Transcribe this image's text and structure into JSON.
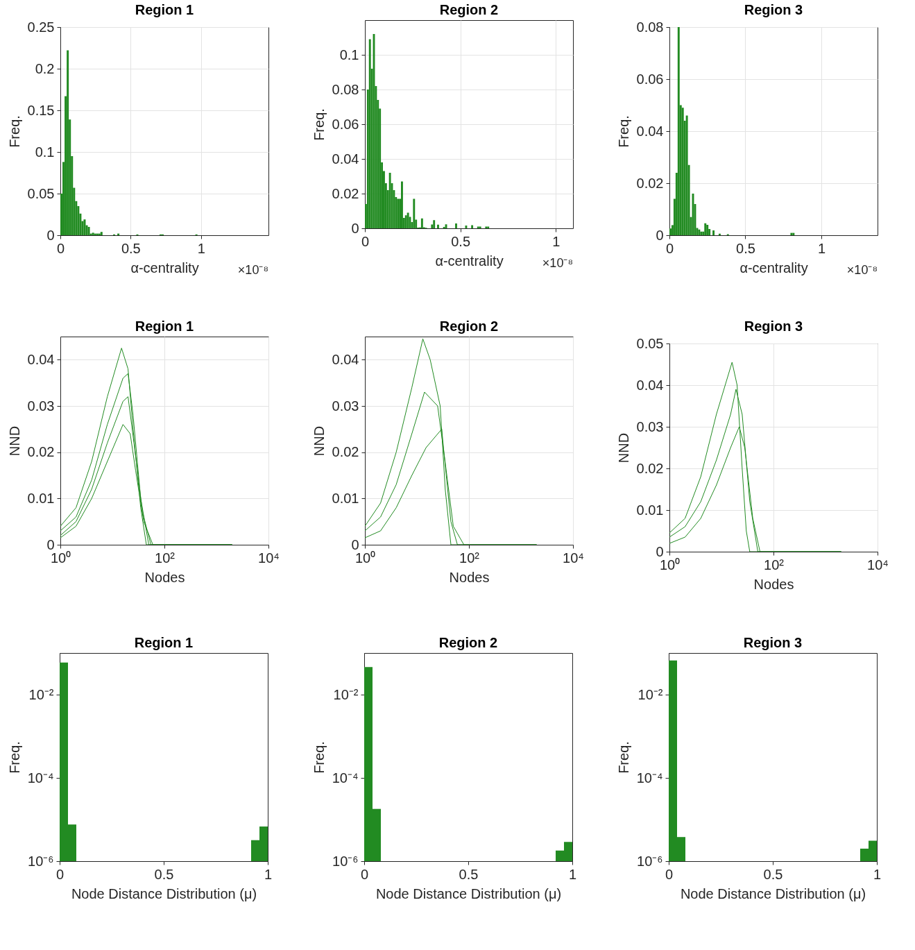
{
  "chart_data": [
    {
      "type": "histogram",
      "title": "Region 1",
      "xlabel": "α-centrality",
      "ylabel": "Freq.",
      "annotations": [
        "×10⁻⁸"
      ],
      "color": "#228b22",
      "grid": true,
      "xlim": [
        0,
        1.48
      ],
      "xticks": [
        0,
        0.5,
        1
      ],
      "ylim": [
        0,
        0.25
      ],
      "yticks": [
        0,
        0.05,
        0.1,
        0.15,
        0.2,
        0.25
      ],
      "bins": [
        0,
        0.015,
        0.03,
        0.045,
        0.06,
        0.075,
        0.09,
        0.105,
        0.12,
        0.135,
        0.15,
        0.165,
        0.18,
        0.195,
        0.21,
        0.225,
        0.24,
        0.255,
        0.27,
        0.285,
        0.3,
        0.375,
        0.39,
        0.405,
        0.42,
        0.54,
        0.555,
        0.705,
        0.72,
        0.735,
        0.96,
        0.975
      ],
      "values": [
        0.05,
        0.088,
        0.167,
        0.222,
        0.139,
        0.095,
        0.057,
        0.041,
        0.035,
        0.026,
        0.017,
        0.019,
        0.012,
        0.01,
        0.002,
        0.003,
        0.002,
        0.002,
        0.002,
        0.004,
        0,
        0.001,
        0,
        0.002,
        0,
        0.001,
        0,
        0.001,
        0.001,
        0,
        0.001
      ]
    },
    {
      "type": "histogram",
      "title": "Region 2",
      "xlabel": "α-centrality",
      "ylabel": "Freq.",
      "annotations": [
        "×10⁻⁸"
      ],
      "color": "#228b22",
      "grid": true,
      "xlim": [
        0,
        1.09
      ],
      "xticks": [
        0,
        0.5,
        1
      ],
      "ylim": [
        0,
        0.12
      ],
      "yticks": [
        0,
        0.02,
        0.04,
        0.06,
        0.08,
        0.1
      ],
      "bins": [
        0,
        0.0105,
        0.021,
        0.0315,
        0.042,
        0.0525,
        0.063,
        0.0735,
        0.084,
        0.0945,
        0.105,
        0.1155,
        0.126,
        0.1365,
        0.147,
        0.1575,
        0.168,
        0.1785,
        0.189,
        0.1995,
        0.21,
        0.2205,
        0.231,
        0.2415,
        0.252,
        0.2625,
        0.273,
        0.2835,
        0.294,
        0.3045,
        0.315,
        0.3255,
        0.3465,
        0.357,
        0.3675,
        0.378,
        0.3885,
        0.4095,
        0.42,
        0.4305,
        0.4725,
        0.483,
        0.525,
        0.5355,
        0.5565,
        0.567,
        0.588,
        0.5985,
        0.609,
        0.63,
        0.6405,
        0.651
      ],
      "values": [
        0.014,
        0.08,
        0.109,
        0.092,
        0.112,
        0.082,
        0.074,
        0.069,
        0.038,
        0.033,
        0.026,
        0.022,
        0.032,
        0.026,
        0.022,
        0.018,
        0.017,
        0.017,
        0.027,
        0.006,
        0.0075,
        0.009,
        0.0066,
        0.0036,
        0.017,
        0.005,
        0.0004,
        0.0005,
        0.0057,
        0.0006,
        0.0003,
        0,
        0.0022,
        0.0047,
        0,
        0.0021,
        0,
        0.0008,
        0.0023,
        0,
        0.0028,
        0,
        0.0016,
        0,
        0.0018,
        0,
        0.001,
        0.001,
        0,
        0.001,
        0.001
      ]
    },
    {
      "type": "histogram",
      "title": "Region 3",
      "xlabel": "α-centrality",
      "ylabel": "Freq.",
      "annotations": [
        "×10⁻⁸"
      ],
      "color": "#228b22",
      "grid": true,
      "xlim": [
        0,
        1.37
      ],
      "xticks": [
        0,
        0.5,
        1
      ],
      "ylim": [
        0,
        0.08
      ],
      "yticks": [
        0,
        0.02,
        0.04,
        0.06,
        0.08
      ],
      "bins": [
        0,
        0.0135,
        0.027,
        0.0405,
        0.054,
        0.0675,
        0.081,
        0.0945,
        0.108,
        0.1215,
        0.135,
        0.1485,
        0.162,
        0.1755,
        0.189,
        0.2025,
        0.216,
        0.2295,
        0.243,
        0.2565,
        0.27,
        0.2835,
        0.297,
        0.324,
        0.3375,
        0.378,
        0.3915,
        0.7965,
        0.81,
        0.8235
      ],
      "values": [
        0.0026,
        0.0039,
        0.014,
        0.024,
        0.08,
        0.05,
        0.049,
        0.044,
        0.046,
        0.027,
        0.007,
        0.016,
        0.012,
        0.0028,
        0.0022,
        0.0014,
        0.0014,
        0.0046,
        0.004,
        0.0024,
        0,
        0.0019,
        0,
        0.0006,
        0,
        0.0004,
        0,
        0.0009,
        0.0009
      ]
    },
    {
      "type": "line",
      "title": "Region 1",
      "xlabel": "Nodes",
      "ylabel": "NND",
      "log": "x",
      "grid": true,
      "xlim": [
        1,
        10000
      ],
      "xticks": [
        {
          "value": 1,
          "label": "10⁰"
        },
        {
          "value": 100,
          "label": "10²"
        },
        {
          "value": 10000,
          "label": "10⁴"
        }
      ],
      "ylim": [
        0,
        0.045
      ],
      "yticks": [
        0,
        0.01,
        0.02,
        0.03,
        0.04
      ],
      "series": [
        {
          "color": "#228b22",
          "x": [
            1,
            2,
            4,
            8,
            15,
            20,
            25,
            35,
            45,
            2000
          ],
          "values": [
            0.004,
            0.008,
            0.018,
            0.032,
            0.0425,
            0.038,
            0.025,
            0.008,
            0,
            0
          ]
        },
        {
          "color": "#228b22",
          "x": [
            1,
            2,
            4,
            8,
            16,
            20,
            25,
            35,
            50,
            2000
          ],
          "values": [
            0.003,
            0.006,
            0.014,
            0.026,
            0.036,
            0.037,
            0.028,
            0.01,
            0,
            0
          ]
        },
        {
          "color": "#228b22",
          "x": [
            1,
            2,
            4,
            8,
            16,
            20,
            26,
            38,
            55,
            2000
          ],
          "values": [
            0.002,
            0.005,
            0.012,
            0.022,
            0.031,
            0.032,
            0.022,
            0.007,
            0,
            0
          ]
        },
        {
          "color": "#228b22",
          "x": [
            1,
            2,
            4,
            8,
            16,
            22,
            28,
            40,
            60,
            2000
          ],
          "values": [
            0.0015,
            0.004,
            0.01,
            0.018,
            0.026,
            0.024,
            0.016,
            0.005,
            0,
            0
          ]
        }
      ]
    },
    {
      "type": "line",
      "title": "Region 2",
      "xlabel": "Nodes",
      "ylabel": "NND",
      "log": "x",
      "grid": true,
      "xlim": [
        1,
        10000
      ],
      "xticks": [
        {
          "value": 1,
          "label": "10⁰"
        },
        {
          "value": 100,
          "label": "10²"
        },
        {
          "value": 10000,
          "label": "10⁴"
        }
      ],
      "ylim": [
        0,
        0.045
      ],
      "yticks": [
        0,
        0.01,
        0.02,
        0.03,
        0.04
      ],
      "series": [
        {
          "color": "#228b22",
          "x": [
            1,
            2,
            4,
            8,
            13,
            18,
            28,
            35,
            45,
            2000
          ],
          "values": [
            0.004,
            0.009,
            0.02,
            0.034,
            0.0445,
            0.04,
            0.03,
            0.012,
            0,
            0
          ]
        },
        {
          "color": "#228b22",
          "x": [
            1,
            2,
            4,
            8,
            14,
            25,
            33,
            45,
            60,
            2000
          ],
          "values": [
            0.003,
            0.006,
            0.013,
            0.024,
            0.033,
            0.03,
            0.02,
            0.005,
            0,
            0
          ]
        },
        {
          "color": "#228b22",
          "x": [
            1,
            2,
            4,
            8,
            15,
            30,
            33,
            50,
            80,
            2000
          ],
          "values": [
            0.0015,
            0.003,
            0.008,
            0.015,
            0.021,
            0.025,
            0.02,
            0.004,
            0,
            0
          ]
        }
      ]
    },
    {
      "type": "line",
      "title": "Region 3",
      "xlabel": "Nodes",
      "ylabel": "NND",
      "log": "x",
      "grid": true,
      "xlim": [
        1,
        10000
      ],
      "xticks": [
        {
          "value": 1,
          "label": "10⁰"
        },
        {
          "value": 100,
          "label": "10²"
        },
        {
          "value": 10000,
          "label": "10⁴"
        }
      ],
      "ylim": [
        0,
        0.05
      ],
      "yticks": [
        0,
        0.01,
        0.02,
        0.03,
        0.04,
        0.05
      ],
      "series": [
        {
          "color": "#228b22",
          "x": [
            1,
            2,
            4,
            8,
            16,
            20,
            25,
            30,
            35,
            2000
          ],
          "values": [
            0.0045,
            0.008,
            0.018,
            0.033,
            0.0455,
            0.04,
            0.02,
            0.005,
            0,
            0
          ]
        },
        {
          "color": "#228b22",
          "x": [
            1,
            2,
            4,
            8,
            15,
            19,
            25,
            35,
            50,
            2000
          ],
          "values": [
            0.0035,
            0.006,
            0.012,
            0.022,
            0.033,
            0.039,
            0.033,
            0.012,
            0,
            0
          ]
        },
        {
          "color": "#228b22",
          "x": [
            1,
            2,
            4,
            8,
            15,
            22,
            28,
            40,
            55,
            2000
          ],
          "values": [
            0.002,
            0.0035,
            0.008,
            0.016,
            0.025,
            0.03,
            0.025,
            0.008,
            0,
            0
          ]
        }
      ]
    },
    {
      "type": "histogram",
      "title": "Region 1",
      "xlabel": "Node Distance Distribution (μ)",
      "ylabel": "Freq.",
      "color": "#228b22",
      "log": "y",
      "xlim": [
        0,
        1
      ],
      "xticks": [
        0,
        0.5,
        1
      ],
      "ylim": [
        1e-06,
        0.1
      ],
      "yticks": [
        {
          "value": 1e-06,
          "label": "10⁻⁶"
        },
        {
          "value": 0.0001,
          "label": "10⁻⁴"
        },
        {
          "value": 0.01,
          "label": "10⁻²"
        }
      ],
      "bins": [
        0,
        0.04,
        0.08,
        0.92,
        0.96,
        1
      ],
      "values": [
        0.059,
        7.6e-06,
        null,
        3.2e-06,
        6.8e-06
      ]
    },
    {
      "type": "histogram",
      "title": "Region 2",
      "xlabel": "Node Distance Distribution (μ)",
      "ylabel": "Freq.",
      "color": "#228b22",
      "log": "y",
      "xlim": [
        0,
        1
      ],
      "xticks": [
        0,
        0.5,
        1
      ],
      "ylim": [
        1e-06,
        0.1
      ],
      "yticks": [
        {
          "value": 1e-06,
          "label": "10⁻⁶"
        },
        {
          "value": 0.0001,
          "label": "10⁻⁴"
        },
        {
          "value": 0.01,
          "label": "10⁻²"
        }
      ],
      "bins": [
        0,
        0.04,
        0.08,
        0.92,
        0.96,
        1
      ],
      "values": [
        0.046,
        1.8e-05,
        null,
        1.8e-06,
        2.9e-06
      ]
    },
    {
      "type": "histogram",
      "title": "Region 3",
      "xlabel": "Node Distance Distribution (μ)",
      "ylabel": "Freq.",
      "color": "#228b22",
      "log": "y",
      "xlim": [
        0,
        1
      ],
      "xticks": [
        0,
        0.5,
        1
      ],
      "ylim": [
        1e-06,
        0.1
      ],
      "yticks": [
        {
          "value": 1e-06,
          "label": "10⁻⁶"
        },
        {
          "value": 0.0001,
          "label": "10⁻⁴"
        },
        {
          "value": 0.01,
          "label": "10⁻²"
        }
      ],
      "bins": [
        0,
        0.04,
        0.08,
        0.92,
        0.96,
        1
      ],
      "values": [
        0.066,
        3.8e-06,
        null,
        2e-06,
        3.1e-06
      ]
    }
  ]
}
